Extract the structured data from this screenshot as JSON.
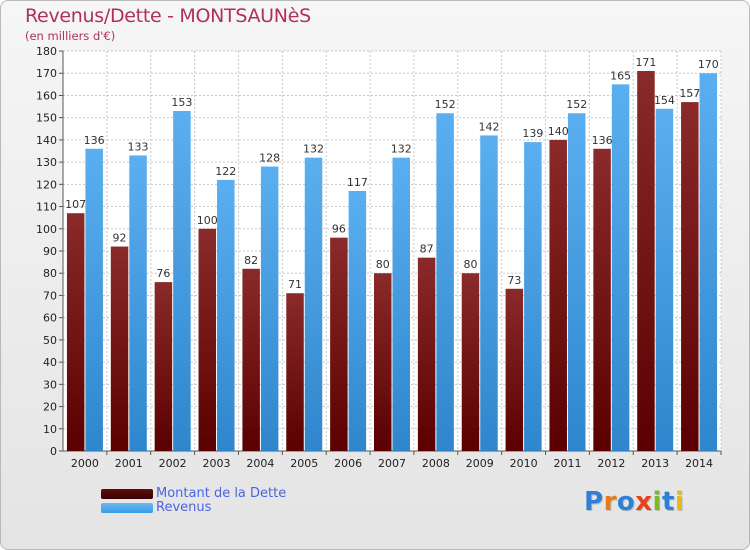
{
  "header": {
    "title": "Revenus/Dette - MONTSAUNèS",
    "subtitle": "(en milliers d'€)"
  },
  "chart_data": {
    "type": "bar",
    "categories": [
      "2000",
      "2001",
      "2002",
      "2003",
      "2004",
      "2005",
      "2006",
      "2007",
      "2008",
      "2009",
      "2010",
      "2011",
      "2012",
      "2013",
      "2014"
    ],
    "series": [
      {
        "name": "Montant de la Dette",
        "color": "#7a1515",
        "values": [
          107,
          92,
          76,
          100,
          82,
          71,
          96,
          80,
          87,
          80,
          73,
          140,
          136,
          171,
          157
        ]
      },
      {
        "name": "Revenus",
        "color": "#3a9ae6",
        "values": [
          136,
          133,
          153,
          122,
          128,
          132,
          117,
          132,
          152,
          142,
          139,
          152,
          165,
          154,
          170
        ]
      }
    ],
    "ylim": [
      0,
      180
    ],
    "ytick_step": 10,
    "grid": true,
    "legend_placement": "bottom-left"
  },
  "legend": {
    "items": [
      {
        "label": "Montant de la Dette",
        "color": "#5c0f0f"
      },
      {
        "label": "Revenus",
        "color": "#3a9ae6"
      }
    ]
  },
  "logo": {
    "letters": [
      {
        "ch": "P",
        "color": "#2f7fd6"
      },
      {
        "ch": "r",
        "color": "#e87a1a"
      },
      {
        "ch": "o",
        "color": "#2f7fd6"
      },
      {
        "ch": "x",
        "color": "#e8401a"
      },
      {
        "ch": "i",
        "color": "#7cb82a"
      },
      {
        "ch": "t",
        "color": "#2f7fd6"
      },
      {
        "ch": "i",
        "color": "#e8b81a"
      }
    ]
  }
}
